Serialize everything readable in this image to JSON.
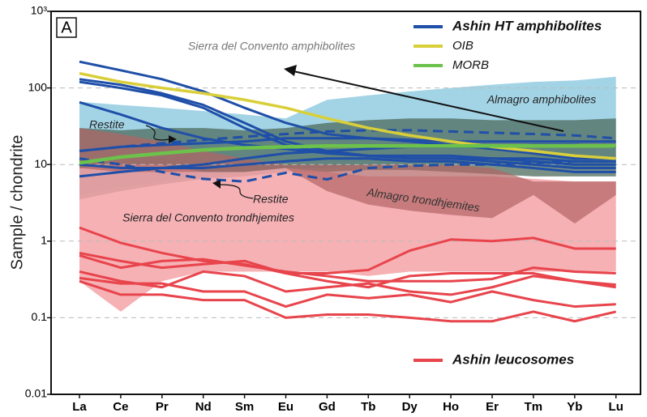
{
  "chart_data": {
    "type": "line",
    "panel_label": "A",
    "ylabel": "Sample / chondrite",
    "log_scale": true,
    "grid": true,
    "categories": [
      "La",
      "Ce",
      "Pr",
      "Nd",
      "Sm",
      "Eu",
      "Gd",
      "Tb",
      "Dy",
      "Ho",
      "Er",
      "Tm",
      "Yb",
      "Lu"
    ],
    "ylim": [
      0.01,
      1000
    ],
    "yticks": [
      0.01,
      0.1,
      1,
      10,
      100,
      {
        "value": 1000,
        "label": "10³"
      }
    ],
    "fields": [
      {
        "name": "Sierra del Convento amphibolites",
        "color": "#93cde2",
        "upper": [
          66,
          60,
          55,
          50,
          45,
          40,
          70,
          80,
          90,
          100,
          110,
          120,
          125,
          140
        ],
        "lower": [
          4,
          5,
          6,
          7,
          8,
          9,
          9,
          10,
          10,
          10,
          10,
          10,
          9,
          9
        ]
      },
      {
        "name": "Almagro amphibolites",
        "color": "#4d6b5c",
        "upper": [
          30,
          28,
          30,
          30,
          28,
          30,
          35,
          38,
          40,
          40,
          38,
          38,
          38,
          40
        ],
        "lower": [
          3.5,
          4.5,
          5.5,
          6.5,
          7,
          8,
          8,
          8.5,
          8.5,
          8,
          7.5,
          7,
          7,
          7
        ]
      },
      {
        "name": "Sierra del Convento trondhjemites",
        "color": "#f4a3a8",
        "upper": [
          9,
          10,
          10,
          8,
          8,
          9,
          8,
          7,
          7,
          7,
          7,
          6.5,
          6,
          6
        ],
        "lower": [
          0.3,
          0.12,
          0.3,
          0.4,
          0.4,
          0.4,
          0.4,
          0.35,
          0.4,
          0.4,
          0.4,
          0.4,
          0.4,
          0.4
        ]
      },
      {
        "name": "Almagro trondhjemites",
        "color": "#b46464",
        "upper": [
          30,
          25,
          20,
          15,
          12,
          10,
          10,
          10,
          10,
          10,
          9,
          6,
          6,
          6
        ],
        "lower": [
          9,
          8,
          8,
          8,
          8,
          9,
          4.5,
          3,
          2.5,
          2.2,
          2,
          4,
          1.7,
          4
        ]
      }
    ],
    "restite": {
      "label": "Restite",
      "color": "#1f4fa8",
      "samples": [
        [
          15,
          17,
          19,
          21,
          23,
          25,
          27,
          28,
          28,
          27,
          26,
          25,
          24,
          22
        ],
        [
          12,
          10,
          8,
          6.5,
          6,
          7.8,
          6.4,
          9,
          9.6,
          10,
          10,
          10.5,
          11,
          11
        ]
      ]
    },
    "series": [
      {
        "name": "Ashin HT amphibolites",
        "color": "#1f4fa8",
        "samples": [
          [
            220,
            170,
            130,
            90,
            55,
            35,
            25,
            22,
            20,
            18,
            16,
            14,
            12,
            12
          ],
          [
            130,
            110,
            85,
            60,
            35,
            20,
            15,
            13,
            12,
            12,
            11,
            10,
            9,
            9
          ],
          [
            120,
            100,
            80,
            55,
            30,
            18,
            14,
            13,
            13,
            13,
            12,
            12,
            11,
            11
          ],
          [
            65,
            45,
            30,
            22,
            18,
            16,
            14,
            13,
            12,
            12,
            12,
            11,
            10,
            10
          ],
          [
            15,
            17,
            18,
            19,
            20,
            22,
            22,
            22,
            21,
            20,
            20,
            20,
            20,
            20
          ],
          [
            10,
            9,
            9,
            10,
            12,
            14,
            15,
            16,
            17,
            17,
            17,
            18,
            18,
            17
          ],
          [
            7,
            8,
            9,
            9,
            10,
            11,
            12,
            12,
            11,
            11,
            10,
            9,
            8,
            8
          ]
        ]
      },
      {
        "name": "OIB",
        "color": "#d9cf3a",
        "samples": [
          [
            155,
            120,
            100,
            85,
            70,
            55,
            40,
            30,
            24,
            20,
            17,
            15,
            13,
            12
          ]
        ]
      },
      {
        "name": "MORB",
        "color": "#6cc24a",
        "samples": [
          [
            10.5,
            12.5,
            14,
            15.5,
            16.5,
            17,
            17.5,
            17.5,
            17.5,
            17.5,
            17.5,
            17.5,
            17.5,
            17.5
          ]
        ]
      },
      {
        "name": "Ashin leucosomes",
        "color": "#e8444c",
        "samples": [
          [
            1.5,
            0.95,
            0.7,
            0.55,
            0.5,
            0.38,
            0.38,
            0.42,
            0.75,
            1.05,
            1.0,
            1.1,
            0.8,
            0.8
          ],
          [
            0.65,
            0.45,
            0.55,
            0.58,
            0.48,
            0.4,
            0.35,
            0.3,
            0.3,
            0.3,
            0.32,
            0.45,
            0.4,
            0.38
          ],
          [
            0.7,
            0.55,
            0.45,
            0.5,
            0.55,
            0.38,
            0.3,
            0.25,
            0.35,
            0.38,
            0.38,
            0.38,
            0.3,
            0.27
          ],
          [
            0.4,
            0.3,
            0.25,
            0.4,
            0.35,
            0.22,
            0.25,
            0.28,
            0.22,
            0.2,
            0.25,
            0.35,
            0.3,
            0.25
          ],
          [
            0.33,
            0.28,
            0.28,
            0.22,
            0.22,
            0.14,
            0.2,
            0.18,
            0.2,
            0.16,
            0.22,
            0.17,
            0.14,
            0.15
          ],
          [
            0.3,
            0.2,
            0.2,
            0.17,
            0.17,
            0.1,
            0.11,
            0.11,
            0.1,
            0.09,
            0.09,
            0.12,
            0.09,
            0.12
          ]
        ]
      }
    ]
  }
}
